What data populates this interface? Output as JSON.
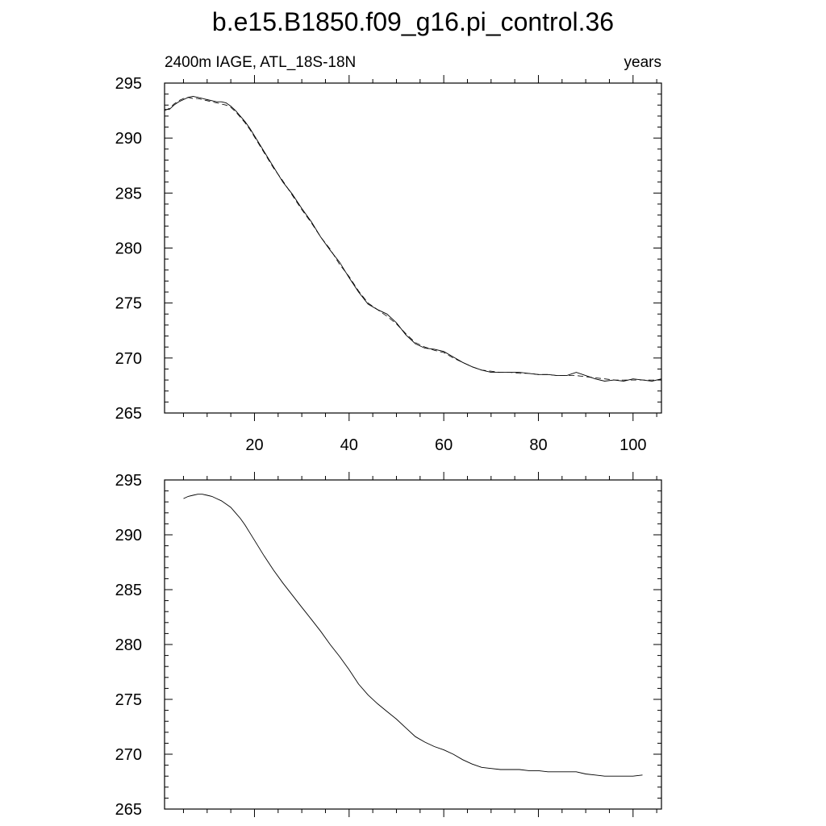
{
  "chart_data": [
    {
      "type": "line",
      "title": "b.e15.B1850.f09_g16.pi_control.36",
      "left_label": "2400m IAGE, ATL_18S-18N",
      "right_label": "years",
      "xlim": [
        1,
        106
      ],
      "ylim": [
        265,
        295
      ],
      "x_ticks": [
        20,
        40,
        60,
        80,
        100
      ],
      "x_tick_labels": [
        "20",
        "40",
        "60",
        "80",
        "100"
      ],
      "y_ticks": [
        265,
        270,
        275,
        280,
        285,
        290,
        295
      ],
      "y_tick_labels": [
        "265",
        "270",
        "275",
        "280",
        "285",
        "290",
        "295"
      ],
      "series": [
        {
          "style": "solid",
          "x": [
            1,
            2,
            3,
            4,
            5,
            6,
            7,
            8,
            9,
            10,
            11,
            12,
            13,
            14,
            15,
            16,
            17,
            18,
            19,
            20,
            22,
            24,
            26,
            28,
            30,
            32,
            34,
            36,
            38,
            40,
            42,
            44,
            46,
            48,
            50,
            52,
            54,
            56,
            58,
            60,
            62,
            64,
            66,
            68,
            70,
            72,
            74,
            76,
            78,
            80,
            82,
            84,
            86,
            88,
            90,
            92,
            94,
            96,
            98,
            100,
            102,
            104,
            106
          ],
          "y": [
            292.6,
            292.6,
            293.0,
            293.3,
            293.5,
            293.7,
            293.8,
            293.7,
            293.6,
            293.5,
            293.4,
            293.3,
            293.3,
            293.2,
            292.9,
            292.5,
            292.0,
            291.5,
            290.9,
            290.2,
            288.8,
            287.4,
            286.0,
            284.9,
            283.6,
            282.4,
            281.0,
            279.8,
            278.7,
            277.3,
            276.0,
            274.9,
            274.4,
            274.0,
            273.2,
            272.1,
            271.3,
            270.9,
            270.8,
            270.6,
            270.1,
            269.6,
            269.2,
            268.9,
            268.7,
            268.7,
            268.7,
            268.7,
            268.6,
            268.5,
            268.5,
            268.4,
            268.4,
            268.7,
            268.4,
            268.1,
            267.9,
            268.0,
            267.9,
            268.1,
            268.0,
            267.9,
            268.1
          ]
        },
        {
          "style": "dashed",
          "x": [
            1,
            2,
            3,
            4,
            5,
            6,
            7,
            8,
            9,
            10,
            11,
            12,
            13,
            14,
            15,
            16,
            17,
            18,
            19,
            20,
            22,
            24,
            26,
            28,
            30,
            32,
            34,
            36,
            38,
            40,
            42,
            44,
            46,
            48,
            50,
            52,
            54,
            56,
            58,
            60,
            62,
            64,
            66,
            68,
            70,
            72,
            74,
            76,
            78,
            80,
            82,
            84,
            86,
            88,
            90,
            92,
            94,
            96,
            98,
            100,
            102,
            104,
            106
          ],
          "y": [
            292.5,
            292.7,
            293.1,
            293.4,
            293.6,
            293.7,
            293.6,
            293.6,
            293.5,
            293.4,
            293.3,
            293.2,
            293.1,
            293.0,
            292.8,
            292.4,
            291.9,
            291.4,
            290.8,
            290.1,
            288.7,
            287.3,
            286.1,
            284.8,
            283.5,
            282.3,
            281.0,
            279.9,
            278.5,
            277.4,
            276.1,
            275.0,
            274.4,
            273.8,
            273.1,
            272.2,
            271.4,
            271.0,
            270.7,
            270.5,
            270.0,
            269.6,
            269.2,
            268.9,
            268.8,
            268.7,
            268.7,
            268.6,
            268.6,
            268.5,
            268.5,
            268.4,
            268.4,
            268.4,
            268.3,
            268.2,
            268.1,
            268.0,
            268.0,
            268.0,
            268.0,
            268.0,
            268.0
          ]
        }
      ]
    },
    {
      "type": "line",
      "xlim": [
        1,
        106
      ],
      "ylim": [
        265,
        295
      ],
      "x_ticks": [
        20,
        40,
        60,
        80,
        100
      ],
      "y_ticks": [
        265,
        270,
        275,
        280,
        285,
        290,
        295
      ],
      "y_tick_labels": [
        "265",
        "270",
        "275",
        "280",
        "285",
        "290",
        "295"
      ],
      "series": [
        {
          "style": "solid",
          "x": [
            5,
            6,
            7,
            8,
            9,
            10,
            11,
            12,
            13,
            14,
            15,
            16,
            17,
            18,
            19,
            20,
            22,
            24,
            26,
            28,
            30,
            32,
            34,
            36,
            38,
            40,
            42,
            44,
            46,
            48,
            50,
            52,
            54,
            56,
            58,
            60,
            62,
            64,
            66,
            68,
            70,
            72,
            74,
            76,
            78,
            80,
            82,
            84,
            86,
            88,
            90,
            92,
            94,
            96,
            98,
            100,
            102
          ],
          "y": [
            293.3,
            293.5,
            293.6,
            293.7,
            293.7,
            293.6,
            293.5,
            293.3,
            293.1,
            292.8,
            292.5,
            292.0,
            291.5,
            290.9,
            290.2,
            289.5,
            288.1,
            286.8,
            285.6,
            284.5,
            283.4,
            282.3,
            281.2,
            280.0,
            278.9,
            277.7,
            276.4,
            275.4,
            274.6,
            273.9,
            273.2,
            272.4,
            271.6,
            271.1,
            270.7,
            270.4,
            270.0,
            269.5,
            269.1,
            268.8,
            268.7,
            268.6,
            268.6,
            268.6,
            268.5,
            268.5,
            268.4,
            268.4,
            268.4,
            268.4,
            268.2,
            268.1,
            268.0,
            268.0,
            268.0,
            268.0,
            268.1
          ]
        }
      ]
    }
  ]
}
